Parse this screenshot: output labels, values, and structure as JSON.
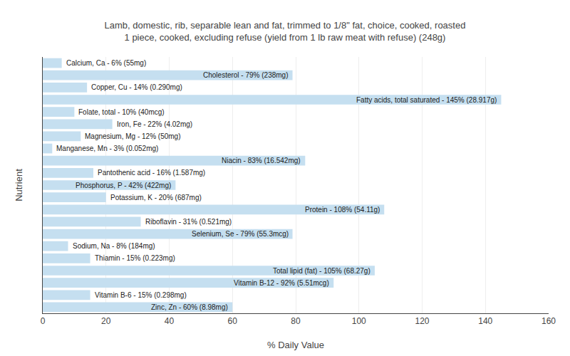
{
  "chart_data": {
    "type": "bar",
    "orientation": "horizontal",
    "title": "Lamb, domestic, rib, separable lean and fat, trimmed to 1/8\" fat, choice, cooked, roasted\n1 piece, cooked, excluding refuse (yield from 1 lb raw meat with refuse) (248g)",
    "xlabel": "% Daily Value",
    "ylabel": "Nutrient",
    "categories": [
      "Calcium, Ca - 6% (55mg)",
      "Cholesterol - 79% (238mg)",
      "Copper, Cu - 14% (0.290mg)",
      "Fatty acids, total saturated - 145% (28.917g)",
      "Folate, total - 10% (40mcg)",
      "Iron, Fe - 22% (4.02mg)",
      "Magnesium, Mg - 12% (50mg)",
      "Manganese, Mn - 3% (0.052mg)",
      "Niacin - 83% (16.542mg)",
      "Pantothenic acid - 16% (1.587mg)",
      "Phosphorus, P - 42% (422mg)",
      "Potassium, K - 20% (687mg)",
      "Protein - 108% (54.11g)",
      "Riboflavin - 31% (0.521mg)",
      "Selenium, Se - 79% (55.3mcg)",
      "Sodium, Na - 8% (184mg)",
      "Thiamin - 15% (0.223mg)",
      "Total lipid (fat) - 105% (68.27g)",
      "Vitamin B-12 - 92% (5.51mcg)",
      "Vitamin B-6 - 15% (0.298mg)",
      "Zinc, Zn - 60% (8.98mg)"
    ],
    "values": [
      6,
      79,
      14,
      145,
      10,
      22,
      12,
      3,
      83,
      16,
      42,
      20,
      108,
      31,
      79,
      8,
      15,
      105,
      92,
      15,
      60
    ],
    "color": "#c5dff0",
    "xlim": [
      0,
      160
    ],
    "xticks": [
      0,
      20,
      40,
      60,
      80,
      100,
      120,
      140,
      160
    ],
    "grid": true,
    "tick_labels": "x"
  }
}
